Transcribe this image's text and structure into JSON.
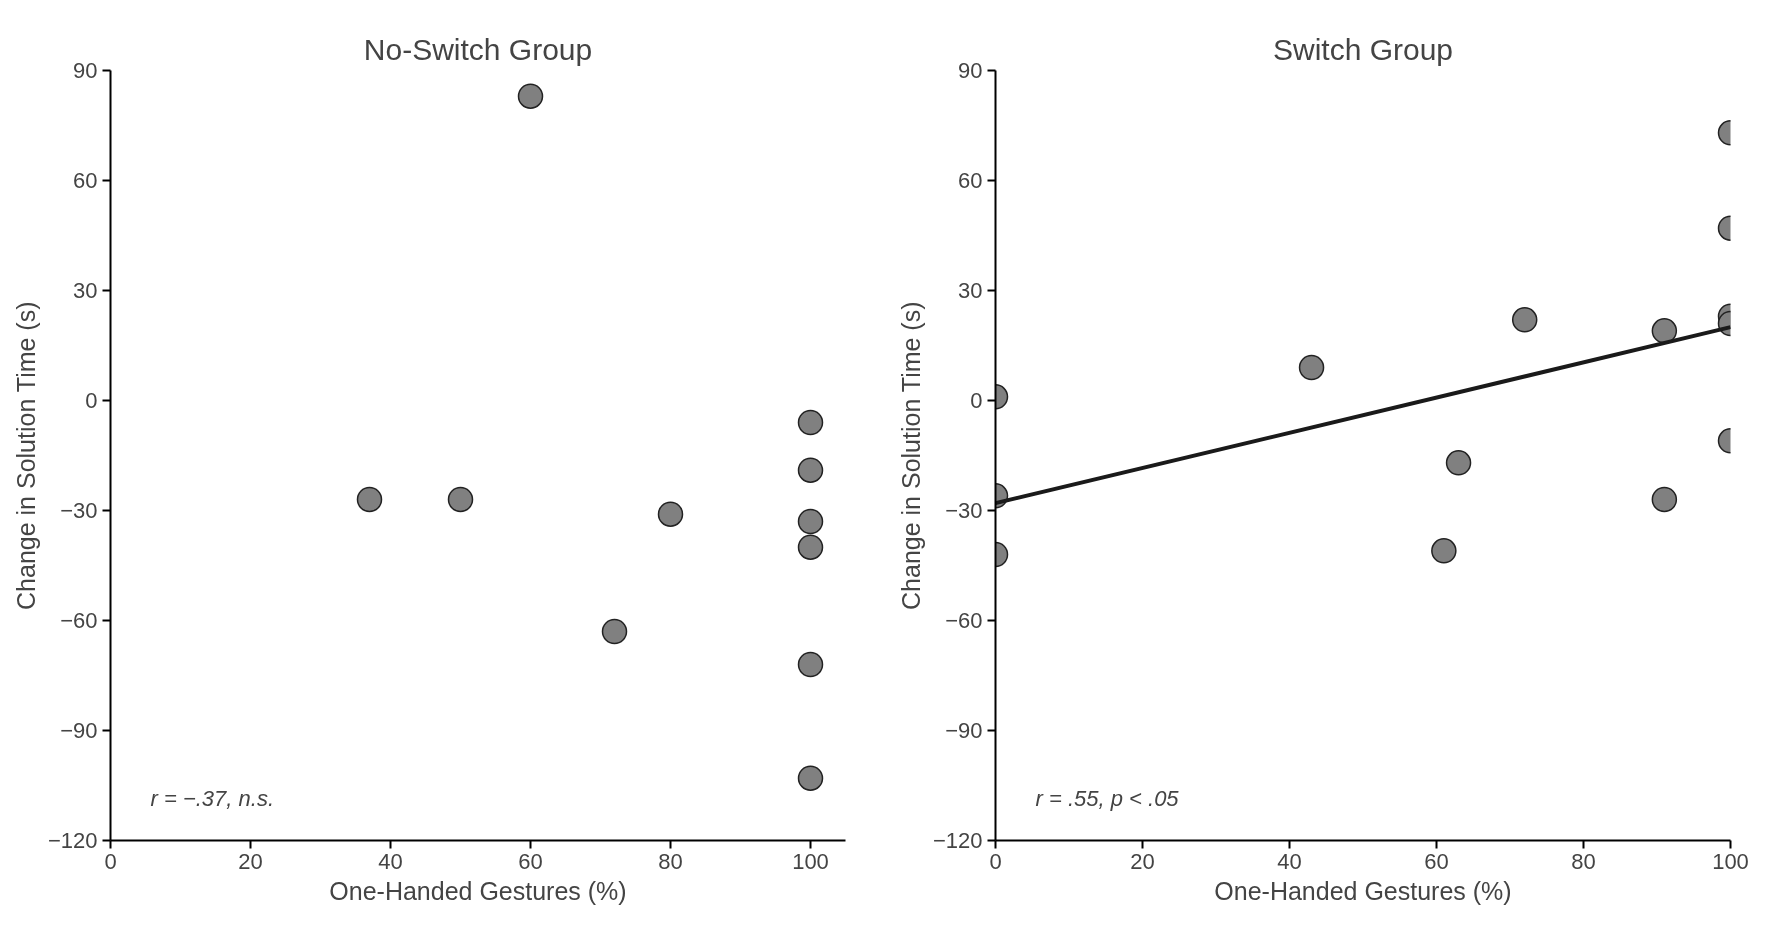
{
  "chart_data": [
    {
      "type": "scatter",
      "title": "No-Switch Group",
      "xlabel": "One-Handed Gestures (%)",
      "ylabel": "Change in Solution Time (s)",
      "xlim": [
        0,
        105
      ],
      "ylim": [
        -120,
        90
      ],
      "xticks": [
        0,
        20,
        40,
        60,
        80,
        100
      ],
      "yticks": [
        -120,
        -90,
        -60,
        -30,
        0,
        30,
        60,
        90
      ],
      "grid": false,
      "marker": "circle",
      "series": [
        {
          "color": "#808080",
          "x": [
            60,
            37,
            50,
            80,
            72,
            100,
            100,
            100,
            100,
            100,
            100
          ],
          "values": [
            83,
            -27,
            -27,
            -31,
            -63,
            -6,
            -19,
            -33,
            -40,
            -72,
            -103
          ]
        }
      ],
      "annotations": [
        "r = −.37, n.s."
      ]
    },
    {
      "type": "scatter",
      "title": "Switch Group",
      "xlabel": "One-Handed Gestures (%)",
      "ylabel": "Change in Solution Time (s)",
      "xlim": [
        0,
        100
      ],
      "ylim": [
        -120,
        90
      ],
      "xticks": [
        0,
        20,
        40,
        60,
        80,
        100
      ],
      "yticks": [
        -120,
        -90,
        -60,
        -30,
        0,
        30,
        60,
        90
      ],
      "grid": false,
      "marker": "circle",
      "series": [
        {
          "color": "#808080",
          "x": [
            100,
            100,
            100,
            100,
            100,
            72,
            91,
            91,
            61,
            63,
            43,
            0,
            0,
            0
          ],
          "values": [
            73,
            47,
            23,
            21,
            -11,
            22,
            19,
            -27,
            -41,
            -17,
            9,
            1,
            -26,
            -42
          ]
        },
        {
          "type": "line",
          "color": "#1a1a1a",
          "x": [
            0,
            100
          ],
          "values": [
            -28,
            20
          ],
          "marker": "none"
        }
      ],
      "annotations": [
        "r = .55, p < .05"
      ]
    }
  ]
}
